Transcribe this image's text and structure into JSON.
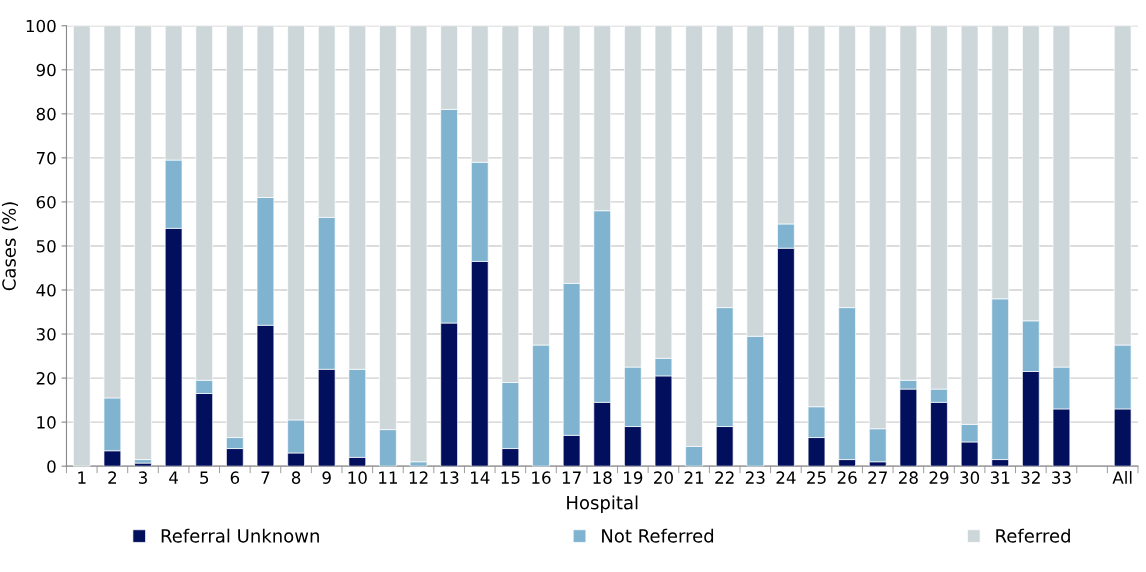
{
  "chart_data": {
    "type": "bar",
    "stacked": true,
    "xlabel": "Hospital",
    "ylabel": "Cases (%)",
    "categories": [
      "1",
      "2",
      "3",
      "4",
      "5",
      "6",
      "7",
      "8",
      "9",
      "10",
      "11",
      "12",
      "13",
      "14",
      "15",
      "16",
      "17",
      "18",
      "19",
      "20",
      "21",
      "22",
      "23",
      "24",
      "25",
      "26",
      "27",
      "28",
      "29",
      "30",
      "31",
      "32",
      "33",
      null,
      "All"
    ],
    "series": [
      {
        "name": "Referral Unknown",
        "color": "#020f5c",
        "values": [
          0,
          3.5,
          0.7,
          54,
          16.5,
          4,
          32,
          3,
          22,
          2,
          0,
          0,
          32.5,
          46.5,
          4,
          0,
          7,
          14.5,
          9,
          20.5,
          0,
          9,
          0,
          49.5,
          6.5,
          1.5,
          1,
          17.5,
          14.5,
          5.5,
          1.5,
          21.5,
          13,
          null,
          13
        ]
      },
      {
        "name": "Not Referred",
        "color": "#7fb3d0",
        "values": [
          0,
          12,
          0.8,
          15.5,
          3,
          2.5,
          29,
          7.5,
          34.5,
          20,
          8.3,
          1,
          48.5,
          22.5,
          15,
          27.5,
          34.5,
          43.5,
          13.5,
          4,
          4.5,
          27,
          29.5,
          5.5,
          7,
          34.5,
          7.5,
          2,
          3,
          4,
          36.5,
          11.5,
          9.5,
          null,
          14.5
        ]
      },
      {
        "name": "Referred",
        "color": "#cdd6d9",
        "values": [
          100,
          84.5,
          98.5,
          30.5,
          80.5,
          93.5,
          39,
          89.5,
          43.5,
          78,
          91.7,
          99,
          19,
          31,
          81,
          72.5,
          58.5,
          42,
          77.5,
          75.5,
          95.5,
          64,
          70.5,
          45,
          86.5,
          64,
          91.5,
          80.5,
          82.5,
          90.5,
          62,
          67,
          77.5,
          null,
          72.5
        ]
      }
    ],
    "ylim": [
      0,
      100
    ],
    "yticks": [
      0,
      10,
      20,
      30,
      40,
      50,
      60,
      70,
      80,
      90,
      100
    ],
    "grid": "y",
    "legend": "bottom"
  }
}
